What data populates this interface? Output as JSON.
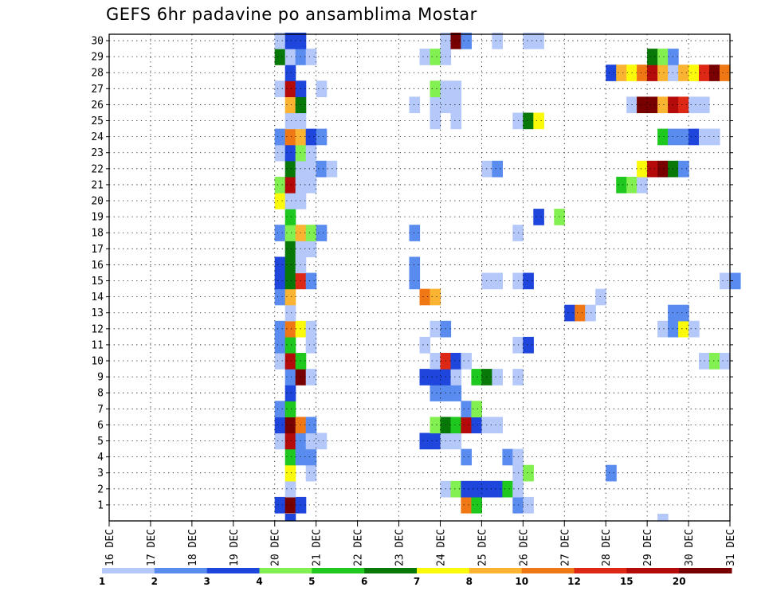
{
  "chart_data": {
    "type": "heatmap",
    "title": "GEFS 6hr padavine po ansamblima Mostar",
    "x_ticks": [
      "16 DEC",
      "17 DEC",
      "18 DEC",
      "19 DEC",
      "20 DEC",
      "21 DEC",
      "22 DEC",
      "23 DEC",
      "24 DEC",
      "25 DEC",
      "26 DEC",
      "27 DEC",
      "28 DEC",
      "29 DEC",
      "30 DEC",
      "31 DEC"
    ],
    "x_range_days": [
      16,
      31
    ],
    "y_ticks": [
      1,
      2,
      3,
      4,
      5,
      6,
      7,
      8,
      9,
      10,
      11,
      12,
      13,
      14,
      15,
      16,
      17,
      18,
      19,
      20,
      21,
      22,
      23,
      24,
      25,
      26,
      27,
      28,
      29,
      30
    ],
    "y_range": [
      0,
      30
    ],
    "grid": "dotted",
    "legend": {
      "position": "bottom",
      "labels": [
        "1",
        "2",
        "3",
        "4",
        "5",
        "6",
        "7",
        "8",
        "10",
        "12",
        "15",
        "20"
      ],
      "colors": [
        "#b4c8fa",
        "#5a8cf0",
        "#1e46dc",
        "#82f050",
        "#1ec81e",
        "#087808",
        "#fafa0a",
        "#fab432",
        "#f07814",
        "#dc2814",
        "#b40a0a",
        "#780000"
      ]
    },
    "cell_width_hours": 6,
    "note_levels": "level index 0-11 into legend.colors",
    "cells": {
      "1": [
        [
          20.0,
          2
        ],
        [
          20.25,
          11
        ],
        [
          20.5,
          2
        ],
        [
          24.5,
          8
        ],
        [
          24.75,
          4
        ],
        [
          25.75,
          1
        ],
        [
          26.0,
          0
        ]
      ],
      "2": [
        [
          20.25,
          0
        ],
        [
          24.0,
          0
        ],
        [
          24.25,
          3
        ],
        [
          24.5,
          2
        ],
        [
          24.75,
          2
        ],
        [
          25.0,
          2
        ],
        [
          25.25,
          2
        ],
        [
          25.5,
          4
        ],
        [
          25.75,
          0
        ]
      ],
      "3": [
        [
          20.25,
          6
        ],
        [
          20.75,
          0
        ],
        [
          25.75,
          0
        ],
        [
          26.0,
          3
        ],
        [
          28.0,
          1
        ]
      ],
      "4": [
        [
          20.25,
          4
        ],
        [
          20.5,
          1
        ],
        [
          20.75,
          1
        ],
        [
          24.5,
          1
        ],
        [
          25.5,
          1
        ],
        [
          25.75,
          0
        ]
      ],
      "5": [
        [
          20.0,
          0
        ],
        [
          20.25,
          10
        ],
        [
          20.5,
          1
        ],
        [
          20.75,
          0
        ],
        [
          21.0,
          0
        ],
        [
          23.5,
          2
        ],
        [
          23.75,
          2
        ],
        [
          24.0,
          0
        ],
        [
          24.25,
          0
        ]
      ],
      "6": [
        [
          20.0,
          2
        ],
        [
          20.25,
          11
        ],
        [
          20.5,
          8
        ],
        [
          20.75,
          1
        ],
        [
          23.75,
          3
        ],
        [
          24.0,
          5
        ],
        [
          24.25,
          4
        ],
        [
          24.5,
          10
        ],
        [
          24.75,
          2
        ],
        [
          25.0,
          0
        ],
        [
          25.25,
          0
        ]
      ],
      "7": [
        [
          20.0,
          1
        ],
        [
          20.25,
          4
        ],
        [
          24.5,
          1
        ],
        [
          24.75,
          3
        ]
      ],
      "8": [
        [
          20.25,
          2
        ],
        [
          23.75,
          1
        ],
        [
          24.0,
          1
        ],
        [
          24.25,
          1
        ]
      ],
      "9": [
        [
          20.25,
          1
        ],
        [
          20.5,
          11
        ],
        [
          20.75,
          0
        ],
        [
          23.5,
          2
        ],
        [
          23.75,
          2
        ],
        [
          24.0,
          2
        ],
        [
          24.25,
          0
        ],
        [
          24.75,
          4
        ],
        [
          25.0,
          5
        ],
        [
          25.25,
          0
        ],
        [
          25.75,
          0
        ]
      ],
      "10": [
        [
          20.0,
          0
        ],
        [
          20.25,
          10
        ],
        [
          20.5,
          4
        ],
        [
          23.75,
          0
        ],
        [
          24.0,
          9
        ],
        [
          24.25,
          2
        ],
        [
          24.5,
          0
        ],
        [
          30.25,
          0
        ],
        [
          30.5,
          3
        ],
        [
          30.75,
          0
        ]
      ],
      "11": [
        [
          20.0,
          1
        ],
        [
          20.25,
          4
        ],
        [
          20.75,
          0
        ],
        [
          23.5,
          0
        ],
        [
          25.75,
          0
        ],
        [
          26.0,
          2
        ]
      ],
      "12": [
        [
          20.0,
          1
        ],
        [
          20.25,
          8
        ],
        [
          20.5,
          6
        ],
        [
          20.75,
          0
        ],
        [
          23.75,
          0
        ],
        [
          24.0,
          1
        ],
        [
          29.25,
          0
        ],
        [
          29.5,
          1
        ],
        [
          29.75,
          6
        ],
        [
          30.0,
          0
        ]
      ],
      "13": [
        [
          20.25,
          0
        ],
        [
          27.0,
          2
        ],
        [
          27.25,
          8
        ],
        [
          27.5,
          0
        ],
        [
          29.5,
          1
        ],
        [
          29.75,
          1
        ]
      ],
      "14": [
        [
          20.0,
          1
        ],
        [
          20.25,
          7
        ],
        [
          23.5,
          8
        ],
        [
          23.75,
          7
        ],
        [
          27.75,
          0
        ]
      ],
      "15": [
        [
          20.0,
          2
        ],
        [
          20.25,
          5
        ],
        [
          20.5,
          9
        ],
        [
          20.75,
          1
        ],
        [
          23.25,
          1
        ],
        [
          25.0,
          0
        ],
        [
          25.25,
          0
        ],
        [
          25.75,
          0
        ],
        [
          26.0,
          2
        ],
        [
          30.75,
          0
        ],
        [
          31.0,
          1
        ]
      ],
      "16": [
        [
          20.0,
          2
        ],
        [
          20.25,
          5
        ],
        [
          20.5,
          0
        ],
        [
          23.25,
          1
        ]
      ],
      "17": [
        [
          20.25,
          5
        ],
        [
          20.5,
          0
        ],
        [
          20.75,
          0
        ]
      ],
      "18": [
        [
          20.0,
          1
        ],
        [
          20.25,
          3
        ],
        [
          20.5,
          7
        ],
        [
          20.75,
          3
        ],
        [
          21.0,
          1
        ],
        [
          23.25,
          1
        ],
        [
          25.75,
          0
        ]
      ],
      "19": [
        [
          20.25,
          4
        ],
        [
          26.25,
          2
        ],
        [
          26.75,
          3
        ]
      ],
      "20": [
        [
          20.0,
          6
        ],
        [
          20.25,
          0
        ],
        [
          20.5,
          0
        ]
      ],
      "21": [
        [
          20.0,
          3
        ],
        [
          20.25,
          10
        ],
        [
          20.5,
          0
        ],
        [
          20.75,
          0
        ],
        [
          28.25,
          4
        ],
        [
          28.5,
          3
        ],
        [
          28.75,
          0
        ]
      ],
      "22": [
        [
          20.25,
          5
        ],
        [
          20.5,
          0
        ],
        [
          20.75,
          0
        ],
        [
          21.0,
          1
        ],
        [
          21.25,
          0
        ],
        [
          25.0,
          0
        ],
        [
          25.25,
          1
        ],
        [
          28.75,
          6
        ],
        [
          29.0,
          10
        ],
        [
          29.25,
          11
        ],
        [
          29.5,
          5
        ],
        [
          29.75,
          1
        ]
      ],
      "23": [
        [
          20.0,
          0
        ],
        [
          20.25,
          2
        ],
        [
          20.5,
          3
        ],
        [
          20.75,
          0
        ]
      ],
      "24": [
        [
          20.0,
          1
        ],
        [
          20.25,
          8
        ],
        [
          20.5,
          7
        ],
        [
          20.75,
          2
        ],
        [
          21.0,
          1
        ],
        [
          29.25,
          4
        ],
        [
          29.5,
          1
        ],
        [
          29.75,
          1
        ],
        [
          30.0,
          2
        ],
        [
          30.25,
          0
        ],
        [
          30.5,
          0
        ]
      ],
      "25": [
        [
          20.25,
          0
        ],
        [
          20.5,
          0
        ],
        [
          23.75,
          0
        ],
        [
          24.25,
          0
        ],
        [
          25.75,
          0
        ],
        [
          26.0,
          5
        ],
        [
          26.25,
          6
        ]
      ],
      "26": [
        [
          20.25,
          7
        ],
        [
          20.5,
          5
        ],
        [
          23.25,
          0
        ],
        [
          23.75,
          0
        ],
        [
          24.0,
          0
        ],
        [
          24.25,
          0
        ],
        [
          28.5,
          0
        ],
        [
          28.75,
          11
        ],
        [
          29.0,
          11
        ],
        [
          29.25,
          7
        ],
        [
          29.5,
          10
        ],
        [
          29.75,
          9
        ],
        [
          30.0,
          0
        ],
        [
          30.25,
          0
        ]
      ],
      "27": [
        [
          20.0,
          0
        ],
        [
          20.25,
          10
        ],
        [
          20.5,
          2
        ],
        [
          21.0,
          0
        ],
        [
          23.75,
          3
        ],
        [
          24.0,
          0
        ],
        [
          24.25,
          0
        ]
      ],
      "28": [
        [
          20.25,
          2
        ],
        [
          28.0,
          2
        ],
        [
          28.25,
          7
        ],
        [
          28.5,
          6
        ],
        [
          28.75,
          8
        ],
        [
          29.0,
          10
        ],
        [
          29.25,
          7
        ],
        [
          29.5,
          0
        ],
        [
          29.75,
          7
        ],
        [
          30.0,
          6
        ],
        [
          30.25,
          9
        ],
        [
          30.5,
          11
        ],
        [
          30.75,
          8
        ]
      ],
      "29": [
        [
          20.0,
          5
        ],
        [
          20.25,
          0
        ],
        [
          20.5,
          1
        ],
        [
          20.75,
          0
        ],
        [
          23.5,
          0
        ],
        [
          23.75,
          3
        ],
        [
          24.0,
          0
        ],
        [
          29.0,
          5
        ],
        [
          29.25,
          3
        ],
        [
          29.5,
          1
        ]
      ],
      "30": [
        [
          20.0,
          0
        ],
        [
          20.25,
          2
        ],
        [
          20.5,
          2
        ],
        [
          24.0,
          0
        ],
        [
          24.25,
          11
        ],
        [
          24.5,
          1
        ],
        [
          25.25,
          0
        ],
        [
          26.0,
          0
        ],
        [
          26.25,
          0
        ]
      ]
    },
    "row_0_cells": [
      [
        20.25,
        2
      ],
      [
        29.25,
        0
      ]
    ]
  }
}
